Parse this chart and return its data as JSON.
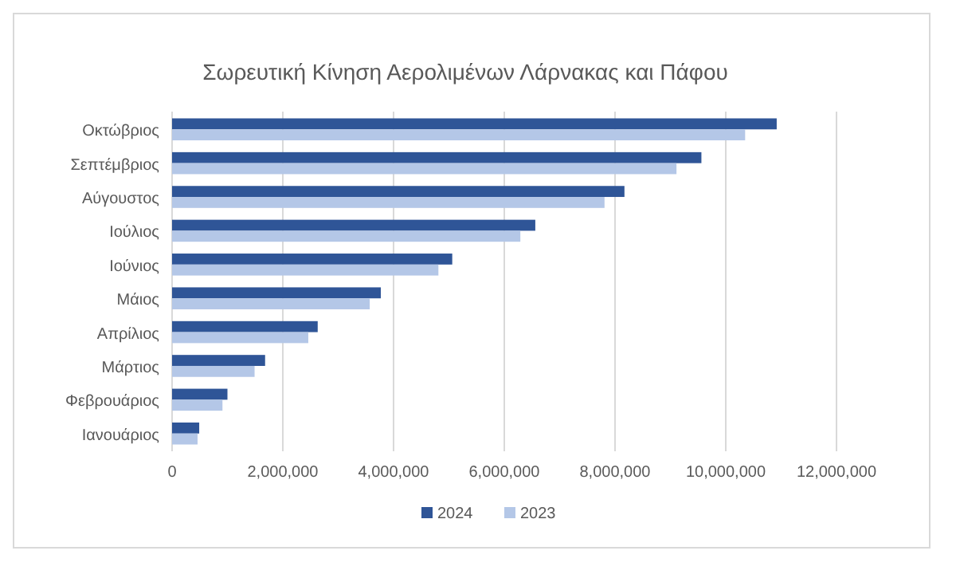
{
  "chart_data": {
    "type": "bar",
    "orientation": "horizontal",
    "title": "Σωρευτική Κίνηση Αερολιμένων Λάρνακας και Πάφου",
    "categories": [
      "Οκτώβριος",
      "Σεπτέμβριος",
      "Αύγουστος",
      "Ιούλιος",
      "Ιούνιος",
      "Μάιος",
      "Απρίλιος",
      "Μάρτιος",
      "Φεβρουάριος",
      "Ιανουάριος"
    ],
    "series": [
      {
        "name": "2024",
        "color": "#2f5597",
        "values": [
          10920000,
          9560000,
          8170000,
          6560000,
          5060000,
          3770000,
          2630000,
          1680000,
          1000000,
          490000
        ]
      },
      {
        "name": "2023",
        "color": "#b4c7e7",
        "values": [
          10350000,
          9110000,
          7810000,
          6290000,
          4810000,
          3570000,
          2460000,
          1490000,
          910000,
          460000
        ]
      }
    ],
    "xlim": [
      0,
      12000000
    ],
    "xticks": [
      {
        "value": 0,
        "label": "0"
      },
      {
        "value": 2000000,
        "label": "2,000,000"
      },
      {
        "value": 4000000,
        "label": "4,000,000"
      },
      {
        "value": 6000000,
        "label": "6,000,000"
      },
      {
        "value": 8000000,
        "label": "8,000,000"
      },
      {
        "value": 10000000,
        "label": "10,000,000"
      },
      {
        "value": 12000000,
        "label": "12,000,000"
      }
    ],
    "grid": "x",
    "legend": "bottom"
  }
}
